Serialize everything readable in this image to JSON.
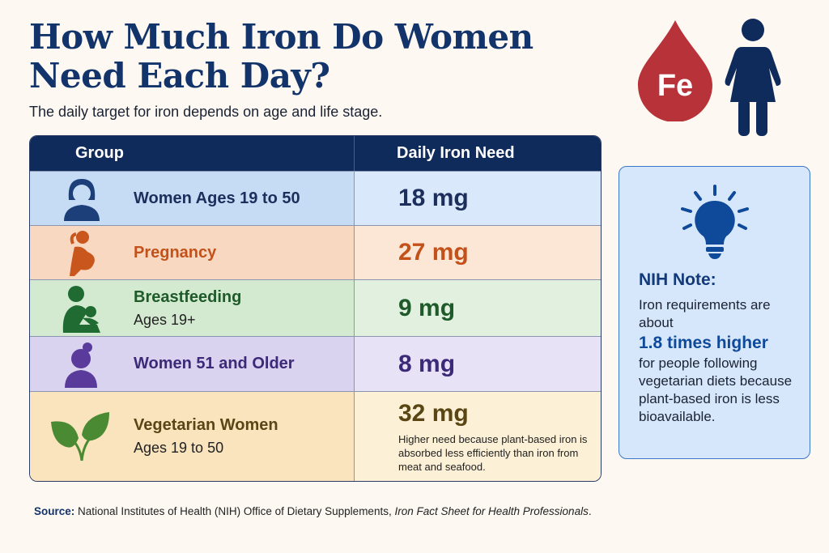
{
  "title": "How Much Iron Do Women Need Each Day?",
  "subtitle": "The daily target for iron depends on age and life stage.",
  "table": {
    "headers": [
      "Group",
      "Daily Iron Need"
    ],
    "rows": [
      {
        "icon": "woman-icon",
        "label": "Women Ages 19 to 50",
        "sub": "",
        "value": "18 mg",
        "note": "",
        "color": "#1c2f5c",
        "bg_left": "#c6dcf5",
        "bg_right": "#d9e8fa"
      },
      {
        "icon": "pregnant-woman-icon",
        "label": "Pregnancy",
        "sub": "",
        "value": "27 mg",
        "note": "",
        "color": "#c2521a",
        "bg_left": "#f9d8c2",
        "bg_right": "#fce6d6"
      },
      {
        "icon": "breastfeeding-icon",
        "label": "Breastfeeding",
        "sub": "Ages 19+",
        "value": "9 mg",
        "note": "",
        "color": "#1f5a2a",
        "bg_left": "#d3ead0",
        "bg_right": "#e2f1df"
      },
      {
        "icon": "older-woman-icon",
        "label": "Women 51 and Older",
        "sub": "",
        "value": "8 mg",
        "note": "",
        "color": "#3a2a78",
        "bg_left": "#dad3f0",
        "bg_right": "#e7e2f6"
      },
      {
        "icon": "leaf-icon",
        "label": "Vegetarian Women",
        "sub": "Ages 19 to 50",
        "value": "32 mg",
        "note": "Higher need because plant-based iron is absorbed less efficiently than iron from meat and seafood.",
        "color": "#5a4614",
        "bg_left": "#f9e4bd",
        "bg_right": "#fcf0d6"
      }
    ]
  },
  "badge": {
    "text": "Fe",
    "color": "#b8323a"
  },
  "note_box": {
    "title": "NIH Note:",
    "line1": "Iron requirements are about",
    "highlight": "1.8 times higher",
    "line2": "for people following vegetarian diets because plant-based iron is less bioavailable."
  },
  "source": {
    "label": "Source:",
    "text": "National Institutes of Health (NIH) Office of Dietary Supplements, ",
    "italic": "Iron Fact Sheet for Health Professionals",
    "end": "."
  }
}
